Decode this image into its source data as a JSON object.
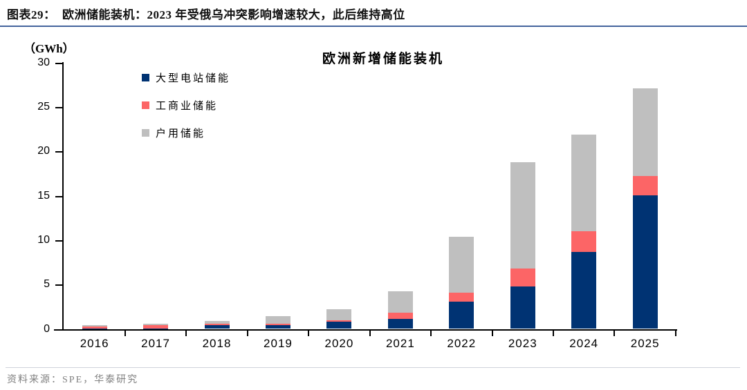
{
  "header": {
    "title": "图表29：  欧洲储能装机：2023 年受俄乌冲突影响增速较大，此后维持高位"
  },
  "chart": {
    "unit_label": "（GWh）",
    "title": "欧洲新增储能装机"
  },
  "chart_data": {
    "type": "bar",
    "stacked": true,
    "title": "欧洲新增储能装机",
    "y_axis_unit_label": "（GWh）",
    "unit": "GWh",
    "categories": [
      "2016",
      "2017",
      "2018",
      "2019",
      "2020",
      "2021",
      "2022",
      "2023",
      "2024",
      "2025"
    ],
    "series": [
      {
        "key": "utility",
        "name": "大型电站储能",
        "color": "#003373",
        "values": [
          0.05,
          0.05,
          0.45,
          0.45,
          0.8,
          1.1,
          3.1,
          4.8,
          8.7,
          15.0
        ]
      },
      {
        "key": "commercial",
        "name": "工商业储能",
        "color": "#fc6566",
        "values": [
          0.25,
          0.4,
          0.15,
          0.15,
          0.2,
          0.7,
          1.0,
          2.0,
          2.3,
          2.2
        ]
      },
      {
        "key": "residential",
        "name": "户用储能",
        "color": "#bfbfbf",
        "values": [
          0.1,
          0.15,
          0.3,
          0.85,
          1.2,
          2.4,
          6.3,
          12.0,
          10.9,
          9.9
        ]
      }
    ],
    "totals": [
      0.4,
      0.6,
      0.9,
      1.45,
      2.2,
      4.2,
      10.4,
      18.8,
      21.9,
      27.1
    ],
    "ylim": [
      0,
      30
    ],
    "yticks": [
      0,
      5,
      10,
      15,
      20,
      25,
      30
    ],
    "grid": false,
    "legend_position": "upper-left",
    "axis_color": "#000000",
    "caption_rule_color": "#44639c"
  },
  "footer": {
    "source": "资料来源：SPE，华泰研究"
  }
}
